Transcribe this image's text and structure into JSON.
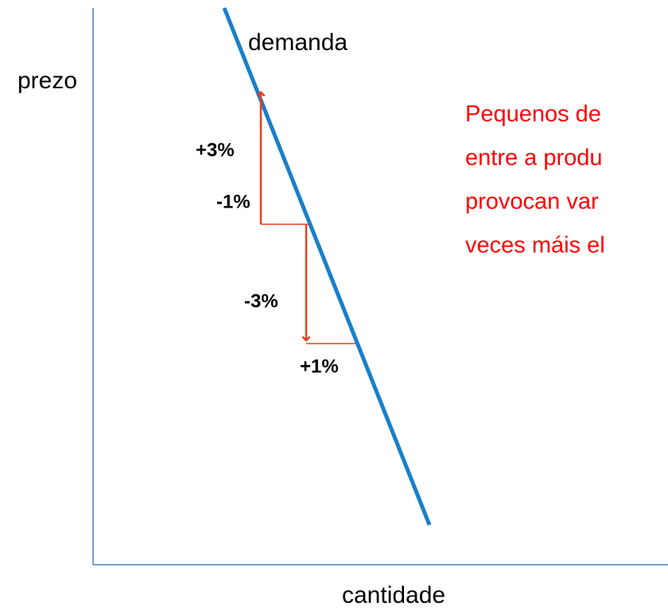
{
  "axes": {
    "y_label": "prezo",
    "x_label": "cantidade"
  },
  "curve": {
    "label": "demanda"
  },
  "changes": [
    "+3%",
    "-1%",
    "-3%",
    "+1%"
  ],
  "note": {
    "lines": [
      "Pequenos de",
      "entre a produ",
      "provocan var",
      "veces máis el"
    ]
  }
}
